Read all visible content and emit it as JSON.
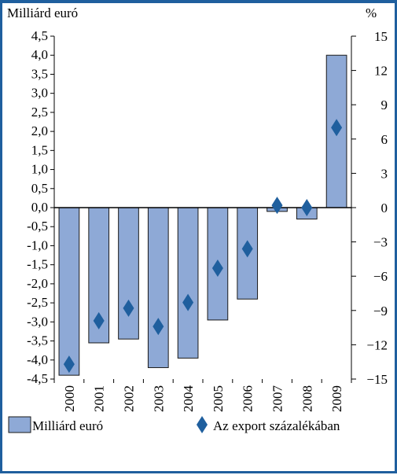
{
  "chart_data": {
    "type": "bar",
    "categories": [
      "2000",
      "2001",
      "2002",
      "2003",
      "2004",
      "2005",
      "2006",
      "2007",
      "2008",
      "2009"
    ],
    "series": [
      {
        "name": "Milliárd euró",
        "kind": "bar",
        "axis": "left",
        "values": [
          -4.4,
          -3.55,
          -3.45,
          -4.2,
          -3.95,
          -2.95,
          -2.4,
          -0.1,
          -0.3,
          4.0
        ]
      },
      {
        "name": "Az export százalékában",
        "kind": "marker",
        "axis": "right",
        "values": [
          -13.7,
          -9.9,
          -8.8,
          -10.4,
          -8.3,
          -5.3,
          -3.6,
          0.2,
          0.0,
          7.0
        ]
      }
    ],
    "left_axis": {
      "label": "Milliárd euró",
      "min": -4.5,
      "max": 4.5,
      "step": 0.5,
      "ticks": [
        "4,5",
        "4,0",
        "3,5",
        "3,0",
        "2,5",
        "2,0",
        "1,5",
        "1,0",
        "0,5",
        "0,0",
        "-0,5",
        "-1,0",
        "-1,5",
        "-2,0",
        "-2,5",
        "-3,0",
        "-3,5",
        "-4,0",
        "-4,5"
      ]
    },
    "right_axis": {
      "label": "%",
      "min": -15,
      "max": 15,
      "step": 3,
      "ticks": [
        "15",
        "12",
        "9",
        "6",
        "3",
        "0",
        "−3",
        "−6",
        "−9",
        "−12",
        "−15"
      ]
    },
    "legend_position": "bottom",
    "grid": false,
    "colors": {
      "bar_fill": "#8ea9d6",
      "bar_stroke": "#1a1a1a",
      "marker": "#1f5f9e",
      "frame": "#1f5f9e",
      "zero_line": "#000000"
    }
  }
}
